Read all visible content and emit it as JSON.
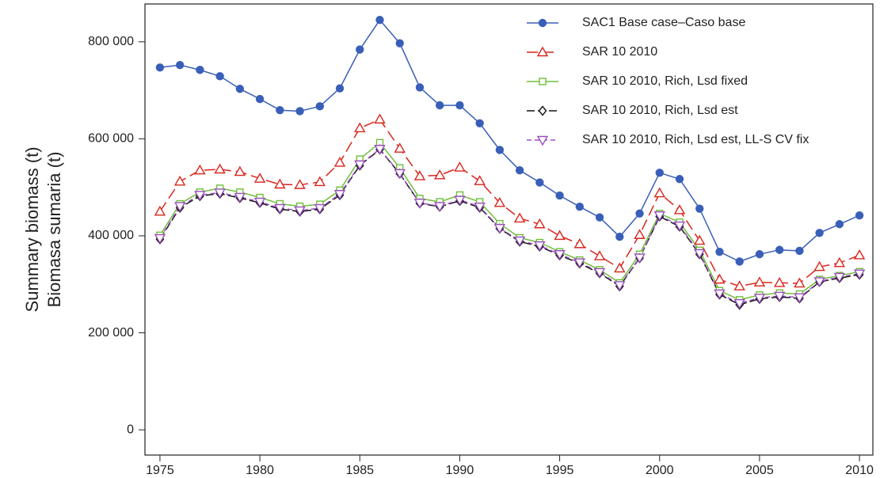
{
  "chart_data": {
    "type": "line",
    "ylabel": [
      "Summary biomass (t)",
      "Biomasa sumaria (t)"
    ],
    "x": [
      1975,
      1976,
      1977,
      1978,
      1979,
      1980,
      1981,
      1982,
      1983,
      1984,
      1985,
      1986,
      1987,
      1988,
      1989,
      1990,
      1991,
      1992,
      1993,
      1994,
      1995,
      1996,
      1997,
      1998,
      1999,
      2000,
      2001,
      2002,
      2003,
      2004,
      2005,
      2006,
      2007,
      2008,
      2009,
      2010
    ],
    "xlim": [
      1974.25,
      2010.67
    ],
    "xticks": [
      1975,
      1980,
      1985,
      1990,
      1995,
      2000,
      2005,
      2010
    ],
    "ylim": [
      -52000,
      878000
    ],
    "yticks": [
      0,
      {
        "value": 200000,
        "label": "200 000"
      },
      {
        "value": 400000,
        "label": "400 000"
      },
      {
        "value": 600000,
        "label": "600 000"
      },
      {
        "value": 800000,
        "label": "800 000"
      }
    ],
    "legend": "top-right",
    "series": [
      {
        "name": "SAC1 Base case–Caso base",
        "color": "#3a5fb8",
        "marker": "circle",
        "dash": "none",
        "values": [
          747000,
          752000,
          742000,
          729000,
          703000,
          682000,
          659000,
          657000,
          667000,
          704000,
          784000,
          845000,
          797000,
          706000,
          669000,
          669000,
          632000,
          577000,
          535000,
          510000,
          483000,
          460000,
          438000,
          398000,
          446000,
          530000,
          517000,
          456000,
          367000,
          347000,
          362000,
          371000,
          369000,
          406000,
          424000,
          442000
        ]
      },
      {
        "name": "SAR 10 2010",
        "color": "#d9251c",
        "marker": "triangle-up",
        "dash": "14 6",
        "values": [
          450000,
          512000,
          535000,
          537000,
          532000,
          518000,
          506000,
          505000,
          511000,
          551000,
          622000,
          640000,
          580000,
          523000,
          525000,
          541000,
          513000,
          468000,
          436000,
          424000,
          400000,
          383000,
          358000,
          333000,
          402000,
          488000,
          453000,
          390000,
          310000,
          296000,
          304000,
          303000,
          302000,
          336000,
          344000,
          360000
        ]
      },
      {
        "name": "SAR 10 2010, Rich, Lsd fixed",
        "color": "#6fbf3a",
        "marker": "square",
        "dash": "none",
        "values": [
          401000,
          466000,
          490000,
          498000,
          490000,
          479000,
          466000,
          461000,
          465000,
          494000,
          558000,
          592000,
          540000,
          477000,
          470000,
          484000,
          470000,
          425000,
          396000,
          386000,
          367000,
          350000,
          330000,
          303000,
          362000,
          446000,
          428000,
          370000,
          287000,
          268000,
          278000,
          282000,
          280000,
          310000,
          318000,
          326000
        ]
      },
      {
        "name": "SAR 10 2010, Rich, Lsd est",
        "color": "#111111",
        "marker": "diamond",
        "dash": "10 4",
        "values": [
          393000,
          458000,
          482000,
          487000,
          478000,
          468000,
          455000,
          450000,
          455000,
          484000,
          545000,
          578000,
          528000,
          467000,
          460000,
          472000,
          458000,
          415000,
          388000,
          378000,
          360000,
          343000,
          323000,
          296000,
          354000,
          440000,
          419000,
          362000,
          279000,
          258000,
          270000,
          274000,
          271000,
          305000,
          313000,
          320000
        ]
      },
      {
        "name": "SAR 10 2010, Rich, Lsd est, LL-S CV fix",
        "color": "#9b4fc0",
        "marker": "triangle-down",
        "dash": "6 4",
        "values": [
          395000,
          461000,
          484000,
          489000,
          480000,
          470000,
          457000,
          452000,
          457000,
          486000,
          547000,
          579000,
          529000,
          468000,
          461000,
          474000,
          460000,
          416000,
          390000,
          380000,
          362000,
          345000,
          325000,
          298000,
          355000,
          442000,
          421000,
          364000,
          281000,
          261000,
          272000,
          276000,
          273000,
          306000,
          315000,
          322000
        ]
      }
    ]
  }
}
